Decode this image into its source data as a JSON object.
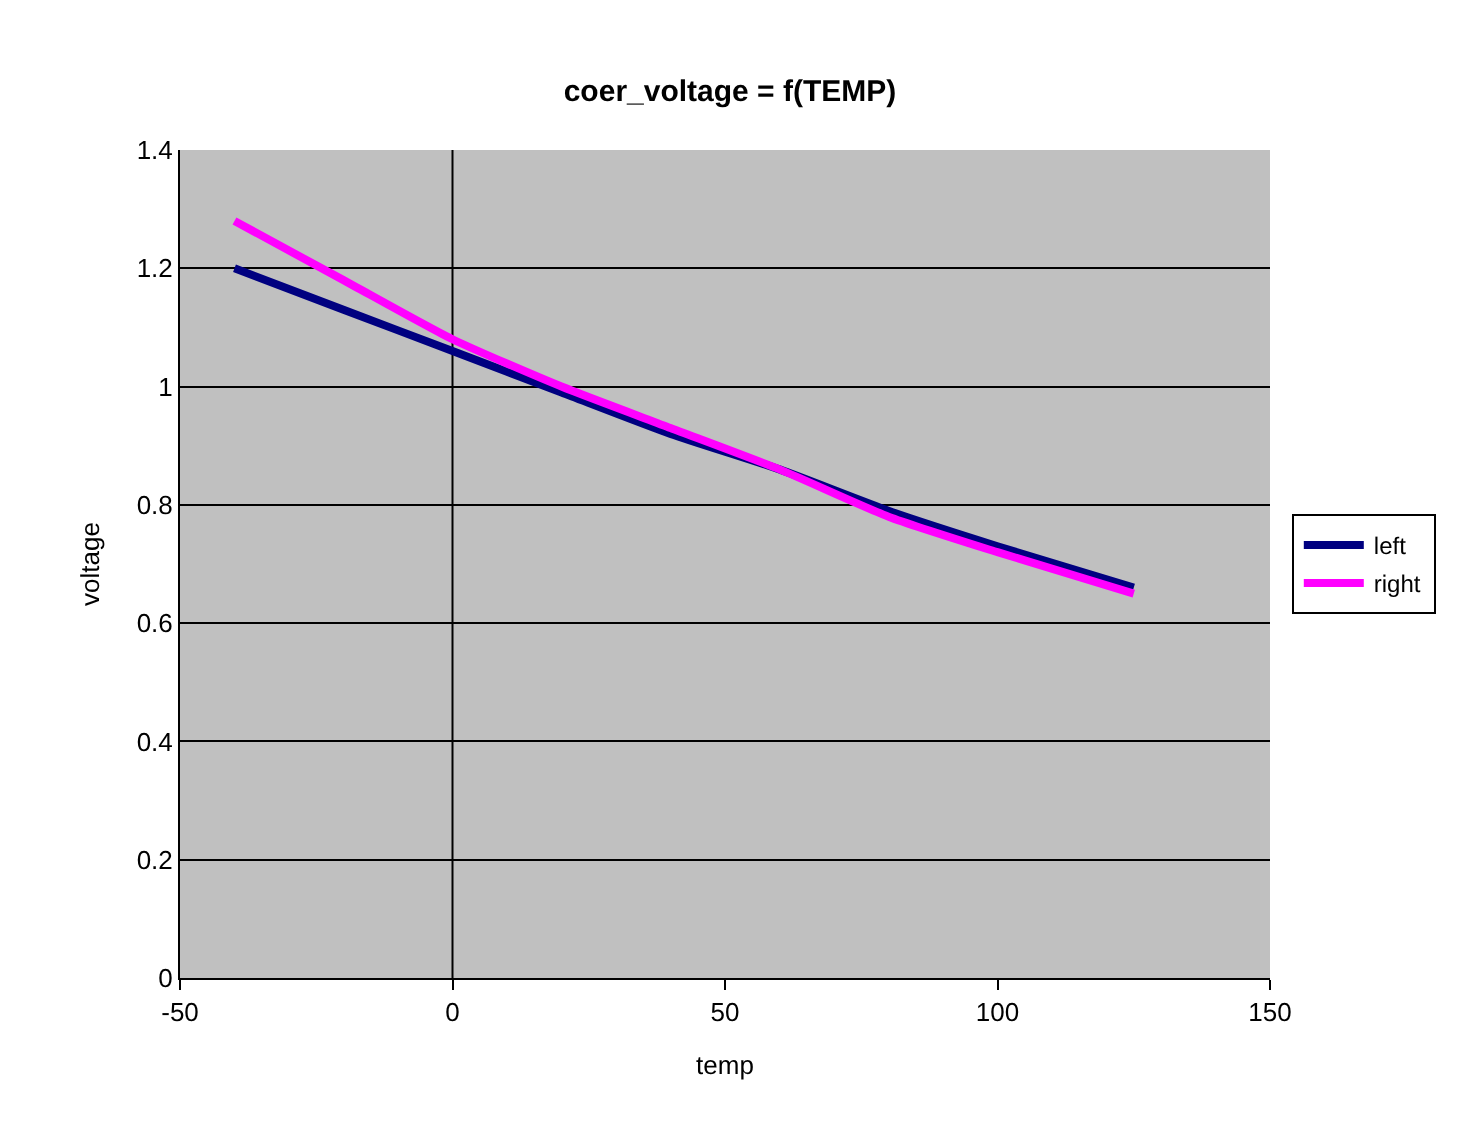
{
  "chart_data": {
    "type": "line",
    "title": "coer_voltage = f(TEMP)",
    "xlabel": "temp",
    "ylabel": "voltage",
    "x": [
      -40,
      -20,
      0,
      20,
      40,
      60,
      80,
      100,
      125
    ],
    "series": [
      {
        "name": "left",
        "color": "#000080",
        "values": [
          1.2,
          1.13,
          1.06,
          0.99,
          0.92,
          0.86,
          0.79,
          0.73,
          0.66
        ]
      },
      {
        "name": "right",
        "color": "#ff00ff",
        "values": [
          1.28,
          1.18,
          1.08,
          1.0,
          0.93,
          0.86,
          0.78,
          0.72,
          0.65
        ]
      }
    ],
    "xlim": [
      -50,
      150
    ],
    "xticks": [
      -50,
      0,
      50,
      100,
      150
    ],
    "ylim": [
      0,
      1.4
    ],
    "yticks": [
      0,
      0.2,
      0.4,
      0.6,
      0.8,
      1,
      1.2,
      1.4
    ],
    "ref_lines": [
      {
        "axis": "x",
        "value": 0,
        "color": "#000000"
      }
    ],
    "grid": "y",
    "legend": "right",
    "marker": "none",
    "line_style": "solid"
  }
}
